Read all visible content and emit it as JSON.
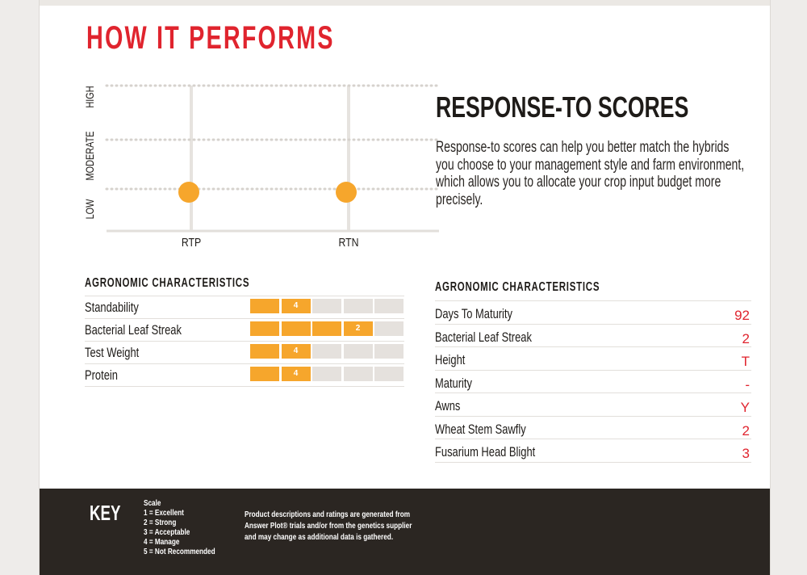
{
  "page": {
    "section_title": "HOW IT PERFORMS"
  },
  "response_to": {
    "title": "RESPONSE-TO SCORES",
    "description": "Response-to scores can help you better match the hybrids you choose to your management style and farm environment, which allows you to allocate your crop input budget more precisely."
  },
  "chart_data": {
    "type": "scatter",
    "categories": [
      "RTP",
      "RTN"
    ],
    "y_levels": [
      "LOW",
      "MODERATE",
      "HIGH"
    ],
    "values": [
      "LOW",
      "LOW"
    ],
    "marker_color": "#f6a62c",
    "grid": true
  },
  "agronomic_left": {
    "title": "AGRONOMIC CHARACTERISTICS",
    "scale_segments": 5,
    "accent_color": "#f6a62c",
    "rows": [
      {
        "label": "Standability",
        "score": 4
      },
      {
        "label": "Bacterial Leaf Streak",
        "score": 2
      },
      {
        "label": "Test Weight",
        "score": 4
      },
      {
        "label": "Protein",
        "score": 4
      }
    ]
  },
  "agronomic_right": {
    "title": "AGRONOMIC CHARACTERISTICS",
    "value_color": "#e0242e",
    "rows": [
      {
        "label": "Days To Maturity",
        "value": "92"
      },
      {
        "label": "Bacterial Leaf Streak",
        "value": "2"
      },
      {
        "label": "Height",
        "value": "T"
      },
      {
        "label": "Maturity",
        "value": "-"
      },
      {
        "label": "Awns",
        "value": "Y"
      },
      {
        "label": "Wheat Stem Sawfly",
        "value": "2"
      },
      {
        "label": "Fusarium Head Blight",
        "value": "3"
      }
    ]
  },
  "footer": {
    "key_title": "KEY",
    "scale_lines": [
      "Scale",
      "1 = Excellent",
      "2 = Strong",
      "3 = Acceptable",
      "4 = Manage",
      "5 = Not Recommended"
    ],
    "disclaimer": "Product descriptions and ratings are generated from Answer Plot® trials and/or from the genetics supplier and may change as additional data is gathered."
  }
}
